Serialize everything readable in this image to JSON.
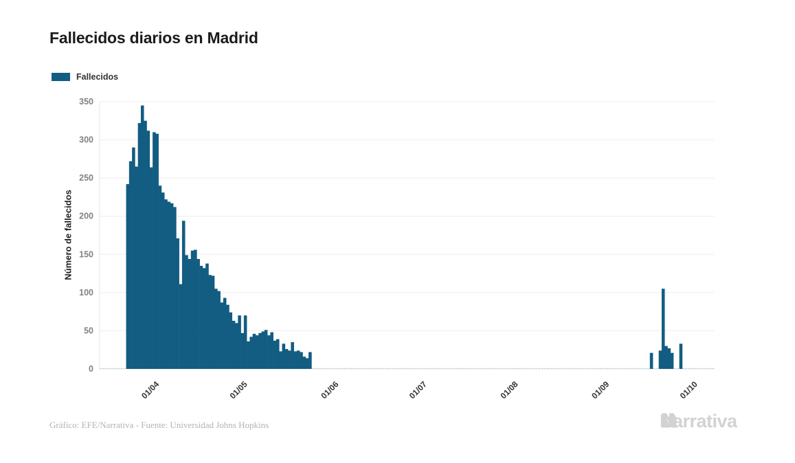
{
  "header": {
    "title": "Fallecidos diarios en Madrid"
  },
  "legend": {
    "label": "Fallecidos",
    "swatch_color": "#135c82"
  },
  "footer": {
    "credit": "Gráfico: EFE/Narrativa - Fuente: Universidad Johns Hopkins",
    "logo_text": "Narrativa"
  },
  "chart_data": {
    "type": "bar",
    "title": "Fallecidos diarios en Madrid",
    "xlabel": "",
    "ylabel": "Número de fallecidos",
    "ylim": [
      0,
      350
    ],
    "yticks": [
      0,
      50,
      100,
      150,
      200,
      250,
      300,
      350
    ],
    "x_tick_labels": [
      "01/04",
      "01/05",
      "01/06",
      "01/07",
      "01/08",
      "01/09",
      "01/10"
    ],
    "grid": "horizontal",
    "legend_position": "top-left",
    "series": [
      {
        "name": "Fallecidos",
        "color": "#135c82",
        "x_domain": [
          "2020-03-14",
          "2020-10-08"
        ],
        "points": [
          [
            "2020-03-23",
            242
          ],
          [
            "2020-03-24",
            272
          ],
          [
            "2020-03-25",
            290
          ],
          [
            "2020-03-26",
            265
          ],
          [
            "2020-03-27",
            322
          ],
          [
            "2020-03-28",
            345
          ],
          [
            "2020-03-29",
            325
          ],
          [
            "2020-03-30",
            312
          ],
          [
            "2020-03-31",
            264
          ],
          [
            "2020-04-01",
            310
          ],
          [
            "2020-04-02",
            308
          ],
          [
            "2020-04-03",
            240
          ],
          [
            "2020-04-04",
            231
          ],
          [
            "2020-04-05",
            222
          ],
          [
            "2020-04-06",
            219
          ],
          [
            "2020-04-07",
            217
          ],
          [
            "2020-04-08",
            212
          ],
          [
            "2020-04-09",
            171
          ],
          [
            "2020-04-10",
            111
          ],
          [
            "2020-04-11",
            194
          ],
          [
            "2020-04-12",
            149
          ],
          [
            "2020-04-13",
            144
          ],
          [
            "2020-04-14",
            155
          ],
          [
            "2020-04-15",
            156
          ],
          [
            "2020-04-16",
            144
          ],
          [
            "2020-04-17",
            135
          ],
          [
            "2020-04-18",
            132
          ],
          [
            "2020-04-19",
            138
          ],
          [
            "2020-04-20",
            123
          ],
          [
            "2020-04-21",
            122
          ],
          [
            "2020-04-22",
            105
          ],
          [
            "2020-04-23",
            102
          ],
          [
            "2020-04-24",
            87
          ],
          [
            "2020-04-25",
            93
          ],
          [
            "2020-04-26",
            84
          ],
          [
            "2020-04-27",
            74
          ],
          [
            "2020-04-28",
            63
          ],
          [
            "2020-04-29",
            60
          ],
          [
            "2020-04-30",
            70
          ],
          [
            "2020-05-01",
            47
          ],
          [
            "2020-05-02",
            70
          ],
          [
            "2020-05-03",
            36
          ],
          [
            "2020-05-04",
            42
          ],
          [
            "2020-05-05",
            46
          ],
          [
            "2020-05-06",
            44
          ],
          [
            "2020-05-07",
            47
          ],
          [
            "2020-05-08",
            49
          ],
          [
            "2020-05-09",
            51
          ],
          [
            "2020-05-10",
            44
          ],
          [
            "2020-05-11",
            48
          ],
          [
            "2020-05-12",
            37
          ],
          [
            "2020-05-13",
            39
          ],
          [
            "2020-05-14",
            23
          ],
          [
            "2020-05-15",
            33
          ],
          [
            "2020-05-16",
            26
          ],
          [
            "2020-05-17",
            24
          ],
          [
            "2020-05-18",
            35
          ],
          [
            "2020-05-19",
            23
          ],
          [
            "2020-05-20",
            24
          ],
          [
            "2020-05-21",
            22
          ],
          [
            "2020-05-22",
            16
          ],
          [
            "2020-05-23",
            14
          ],
          [
            "2020-05-24",
            22
          ],
          [
            "2020-09-17",
            21
          ],
          [
            "2020-09-20",
            24
          ],
          [
            "2020-09-21",
            105
          ],
          [
            "2020-09-22",
            30
          ],
          [
            "2020-09-23",
            27
          ],
          [
            "2020-09-24",
            21
          ],
          [
            "2020-09-27",
            33
          ]
        ]
      }
    ]
  }
}
